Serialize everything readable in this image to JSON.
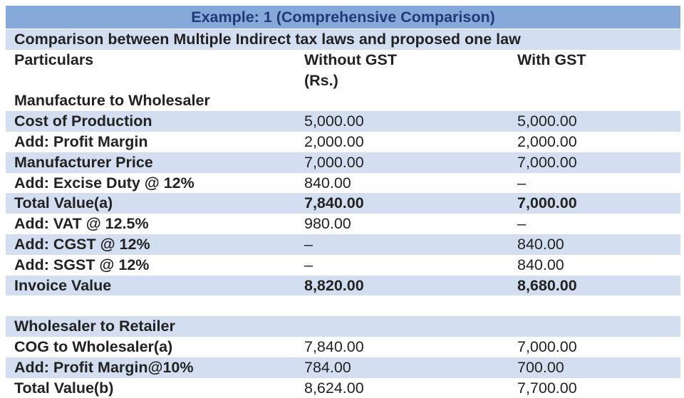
{
  "title": "Example: 1 (Comprehensive Comparison)",
  "subtitle": "Comparison between Multiple Indirect tax laws and proposed one law",
  "header": [
    "Particulars",
    "Without GST (Rs.)",
    "With GST"
  ],
  "sections": [
    {
      "title": "Manufacture to Wholesaler",
      "rows": [
        [
          "Cost of Production",
          "5,000.00",
          "5,000.00"
        ],
        [
          "Add: Profit Margin",
          "2,000.00",
          "2,000.00"
        ],
        [
          "Manufacturer Price",
          "7,000.00",
          "7,000.00"
        ],
        [
          "Add: Excise Duty @ 12%",
          "840.00",
          "–"
        ],
        [
          "Total Value(a)",
          "7,840.00",
          "7,000.00"
        ],
        [
          "Add: VAT @ 12.5%",
          "980.00",
          "–"
        ],
        [
          "Add: CGST @ 12%",
          "–",
          "840.00"
        ],
        [
          "Add: SGST @ 12%",
          "–",
          "840.00"
        ],
        [
          "Invoice Value",
          "8,820.00",
          "8,680.00"
        ]
      ]
    },
    {
      "title": "Wholesaler to Retailer",
      "rows": [
        [
          "COG to Wholesaler(a)",
          "7,840.00",
          "7,000.00"
        ],
        [
          "Add: Profit Margin@10%",
          "784.00",
          "700.00"
        ],
        [
          "Total Value(b)",
          "8,624.00",
          "7,700.00"
        ]
      ]
    }
  ]
}
